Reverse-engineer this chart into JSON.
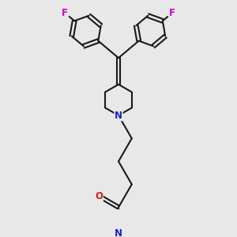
{
  "bg_color": "#e8e8e8",
  "bond_color": "#1a1a1a",
  "N_color": "#2020cc",
  "O_color": "#cc2020",
  "F_color": "#cc00cc",
  "line_width": 1.5,
  "figsize": [
    3.0,
    3.0
  ],
  "dpi": 100,
  "xlim": [
    -4.5,
    4.5
  ],
  "ylim": [
    -5.5,
    5.5
  ]
}
